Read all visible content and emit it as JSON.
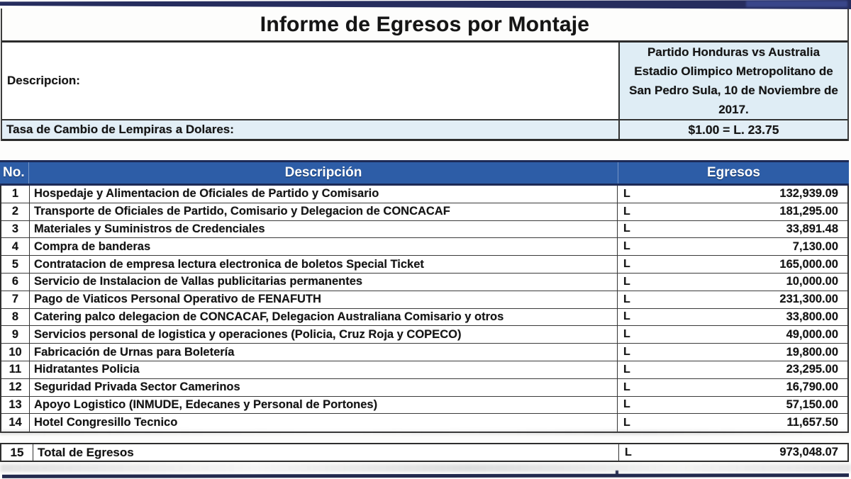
{
  "title": "Informe de Egresos por Montaje",
  "info": {
    "description_label": "Descripcion:",
    "description_value": "Partido Honduras vs Australia Estadio Olimpico Metropolitano de San Pedro Sula, 10 de Noviembre de 2017.",
    "exchange_label": "Tasa de Cambio de Lempiras a Dolares:",
    "exchange_value": "$1.00 = L. 23.75"
  },
  "table": {
    "headers": {
      "no": "No.",
      "description": "Descripción",
      "egresos": "Egresos"
    },
    "currency_symbol": "L",
    "rows": [
      {
        "no": "1",
        "description": "Hospedaje y Alimentacion de Oficiales de Partido y Comisario",
        "amount": "132,939.09"
      },
      {
        "no": "2",
        "description": "Transporte de Oficiales de Partido, Comisario y Delegacion de CONCACAF",
        "amount": "181,295.00"
      },
      {
        "no": "3",
        "description": "Materiales y Suministros de Credenciales",
        "amount": "33,891.48"
      },
      {
        "no": "4",
        "description": "Compra de banderas",
        "amount": "7,130.00"
      },
      {
        "no": "5",
        "description": "Contratacion de empresa lectura electronica de boletos Special Ticket",
        "amount": "165,000.00"
      },
      {
        "no": "6",
        "description": "Servicio de Instalacion de Vallas publicitarias permanentes",
        "amount": "10,000.00"
      },
      {
        "no": "7",
        "description": "Pago de Viaticos Personal Operativo de FENAFUTH",
        "amount": "231,300.00"
      },
      {
        "no": "8",
        "description": "Catering palco delegacion de CONCACAF, Delegacion Australiana Comisario y otros",
        "amount": "33,800.00"
      },
      {
        "no": "9",
        "description": "Servicios personal de logistica y operaciones (Policia, Cruz Roja y COPECO)",
        "amount": "49,000.00"
      },
      {
        "no": "10",
        "description": "Fabricación de Urnas para Boletería",
        "amount": "19,800.00"
      },
      {
        "no": "11",
        "description": "Hidratantes Policia",
        "amount": "23,295.00"
      },
      {
        "no": "12",
        "description": "Seguridad Privada Sector Camerinos",
        "amount": "16,790.00"
      },
      {
        "no": "13",
        "description": "Apoyo Logistico (INMUDE, Edecanes y Personal de Portones)",
        "amount": "57,150.00"
      },
      {
        "no": "14",
        "description": "Hotel Congresillo Tecnico",
        "amount": "11,657.50"
      }
    ],
    "total": {
      "no": "15",
      "description": "Total de Egresos",
      "amount": "973,048.07"
    }
  },
  "colors": {
    "header_blue": "#2d5da7",
    "header_border_navy": "#1d2a56",
    "top_bar_navy": "#262d5e",
    "light_blue_cell": "#dfedf5",
    "border_dark": "#2e2e2e",
    "text": "#151515"
  }
}
